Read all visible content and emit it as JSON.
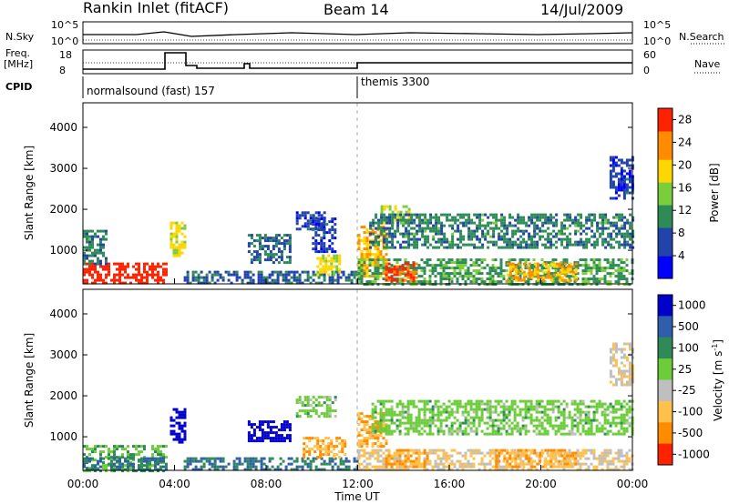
{
  "header": {
    "station": "Rankin Inlet (fitACF)",
    "beam": "Beam 14",
    "date": "14/Jul/2009"
  },
  "noise_panel": {
    "left_label": "N.Sky",
    "right_label": "N.Search",
    "left_ticks": [
      "10^5",
      "10^0"
    ],
    "right_ticks": [
      "10^5",
      "10^0"
    ]
  },
  "freq_panel": {
    "left_label_1": "Freq.",
    "left_label_2": "[MHz]",
    "right_label": "Nave",
    "left_ticks": [
      "18",
      "8"
    ],
    "right_ticks": [
      "60",
      "0"
    ]
  },
  "cpid": {
    "label": "CPID",
    "modes": [
      {
        "text": "normalsound (fast) 157",
        "start_h": 0
      },
      {
        "text": "themis 3300",
        "start_h": 12
      }
    ]
  },
  "time_axis": {
    "title": "Time UT",
    "ticks": [
      "00:00",
      "04:00",
      "08:00",
      "12:00",
      "16:00",
      "20:00",
      "00:00"
    ]
  },
  "chart_data": [
    {
      "type": "heatmap",
      "title": "Power",
      "xlabel": "Time UT",
      "ylabel": "Slant Range [km]",
      "xlim": [
        0,
        24
      ],
      "ylim": [
        180,
        4600
      ],
      "yticks": [
        "1000",
        "2000",
        "3000",
        "4000"
      ],
      "colorbar": {
        "label": "Power [dB]",
        "ticks": [
          "4",
          "8",
          "12",
          "16",
          "20",
          "24",
          "28"
        ],
        "range": [
          0,
          30
        ],
        "colors": [
          "#0000ff",
          "#2244aa",
          "#2e8b57",
          "#7ccd3c",
          "#ffd700",
          "#ff8c00",
          "#ff2200"
        ]
      },
      "regions": [
        {
          "t": [
            0.0,
            3.6
          ],
          "r": [
            180,
            700
          ],
          "value": 30
        },
        {
          "t": [
            0.0,
            1.0
          ],
          "r": [
            700,
            1500
          ],
          "value": 10
        },
        {
          "t": [
            3.8,
            4.4
          ],
          "r": [
            900,
            1700
          ],
          "value": 18
        },
        {
          "t": [
            4.4,
            12.0
          ],
          "r": [
            180,
            500
          ],
          "value": 8
        },
        {
          "t": [
            7.2,
            9.0
          ],
          "r": [
            700,
            1400
          ],
          "value": 8
        },
        {
          "t": [
            9.3,
            10.6
          ],
          "r": [
            1500,
            1950
          ],
          "value": 6
        },
        {
          "t": [
            10.0,
            11.0
          ],
          "r": [
            1000,
            1800
          ],
          "value": 6
        },
        {
          "t": [
            10.2,
            11.2
          ],
          "r": [
            400,
            900
          ],
          "value": 18
        },
        {
          "t": [
            12.0,
            13.2
          ],
          "r": [
            400,
            1600
          ],
          "value": 22
        },
        {
          "t": [
            13.0,
            14.3
          ],
          "r": [
            1700,
            2100
          ],
          "value": 16
        },
        {
          "t": [
            12.5,
            24.0
          ],
          "r": [
            1100,
            1900
          ],
          "value": 10
        },
        {
          "t": [
            12.0,
            24.0
          ],
          "r": [
            180,
            800
          ],
          "value": 12
        },
        {
          "t": [
            13.2,
            14.6
          ],
          "r": [
            300,
            700
          ],
          "value": 26
        },
        {
          "t": [
            18.5,
            21.5
          ],
          "r": [
            300,
            700
          ],
          "value": 22
        },
        {
          "t": [
            23.0,
            24.0
          ],
          "r": [
            2300,
            3300
          ],
          "value": 6
        }
      ]
    },
    {
      "type": "heatmap",
      "title": "Velocity",
      "xlabel": "Time UT",
      "ylabel": "Slant Range [km]",
      "xlim": [
        0,
        24
      ],
      "ylim": [
        180,
        4600
      ],
      "yticks": [
        "1000",
        "2000",
        "3000",
        "4000"
      ],
      "colorbar": {
        "label": "Velocity [m s^-1]",
        "ticks": [
          "1000",
          "500",
          "100",
          "25",
          "-25",
          "-100",
          "-500",
          "-1000"
        ],
        "colors": [
          "#0000cc",
          "#2f5faa",
          "#2e8b57",
          "#6ccc3a",
          "#bfbfbf",
          "#ffc04c",
          "#ff8c00",
          "#ff2200"
        ]
      },
      "regions": [
        {
          "t": [
            0.0,
            3.6
          ],
          "r": [
            180,
            800
          ],
          "value": 25
        },
        {
          "t": [
            0.0,
            3.6
          ],
          "r": [
            180,
            500
          ],
          "value": 100
        },
        {
          "t": [
            3.8,
            4.4
          ],
          "r": [
            900,
            1700
          ],
          "value": 1000
        },
        {
          "t": [
            4.4,
            12.0
          ],
          "r": [
            180,
            500
          ],
          "value": 100
        },
        {
          "t": [
            7.2,
            9.0
          ],
          "r": [
            900,
            1400
          ],
          "value": 1000
        },
        {
          "t": [
            9.3,
            11.0
          ],
          "r": [
            1500,
            2000
          ],
          "value": 0
        },
        {
          "t": [
            9.6,
            11.4
          ],
          "r": [
            500,
            1000
          ],
          "value": -500
        },
        {
          "t": [
            12.0,
            13.2
          ],
          "r": [
            800,
            1600
          ],
          "value": -500
        },
        {
          "t": [
            12.6,
            24.0
          ],
          "r": [
            1100,
            1900
          ],
          "value": 0
        },
        {
          "t": [
            12.0,
            24.0
          ],
          "r": [
            180,
            700
          ],
          "value": -100
        },
        {
          "t": [
            13.2,
            15.0
          ],
          "r": [
            300,
            700
          ],
          "value": -500
        },
        {
          "t": [
            18.0,
            21.5
          ],
          "r": [
            300,
            700
          ],
          "value": -500
        },
        {
          "t": [
            23.0,
            24.0
          ],
          "r": [
            2300,
            3300
          ],
          "value": -100
        }
      ]
    }
  ]
}
